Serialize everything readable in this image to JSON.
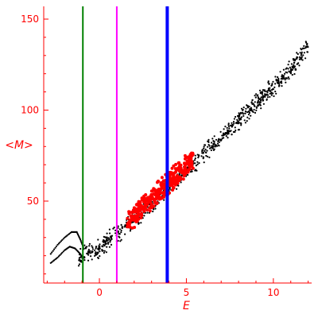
{
  "chart_data": {
    "type": "scatter",
    "title": "",
    "xlabel": "E",
    "ylabel": "<M>",
    "xlim": [
      -3.2,
      12.2
    ],
    "ylim": [
      5,
      157
    ],
    "x_ticks": [
      0,
      5,
      10
    ],
    "y_ticks": [
      50,
      100,
      150
    ],
    "x_tick_labels": [
      "0",
      "5",
      "10"
    ],
    "y_tick_labels": [
      "50",
      "100",
      "150"
    ],
    "axis_color": "#ff0000",
    "grid": false,
    "legend": "none",
    "series": [
      {
        "kind": "scatter",
        "color": "#000000",
        "marker_size": 1.1,
        "band_center": [
          [
            -1.2,
            20
          ],
          [
            0,
            24
          ],
          [
            1,
            32
          ],
          [
            2,
            40
          ],
          [
            3,
            49
          ],
          [
            4,
            58
          ],
          [
            5,
            67
          ],
          [
            6,
            76
          ],
          [
            7,
            85
          ],
          [
            8,
            94
          ],
          [
            9,
            104
          ],
          [
            10,
            113
          ],
          [
            11,
            122
          ],
          [
            12,
            135
          ]
        ],
        "band_halfwidth": 6,
        "x_range": [
          -1.2,
          12
        ],
        "approx_points": 850
      },
      {
        "kind": "curve",
        "color": "#000000",
        "marker_size": 1.1,
        "curves": [
          [
            [
              -2.8,
              21
            ],
            [
              -2.4,
              26
            ],
            [
              -2.0,
              30
            ],
            [
              -1.6,
              33
            ],
            [
              -1.3,
              33
            ],
            [
              -1.1,
              29
            ],
            [
              -0.9,
              24
            ]
          ],
          [
            [
              -2.8,
              16
            ],
            [
              -2.4,
              19
            ],
            [
              -2.0,
              23
            ],
            [
              -1.7,
              25
            ],
            [
              -1.4,
              24
            ],
            [
              -1.1,
              21
            ],
            [
              -0.9,
              18
            ]
          ]
        ]
      },
      {
        "kind": "scatter",
        "color": "#ff0000",
        "marker_size": 2.0,
        "band_center": [
          [
            1.6,
            38
          ],
          [
            2.5,
            46
          ],
          [
            3.5,
            56
          ],
          [
            4.5,
            65
          ],
          [
            5.3,
            72
          ]
        ],
        "band_halfwidth": 7,
        "x_range": [
          1.6,
          5.4
        ],
        "approx_points": 360
      }
    ],
    "vertical_lines": [
      {
        "x": -0.95,
        "color": "#008000",
        "width": 2
      },
      {
        "x": 1.0,
        "color": "#ff00ff",
        "width": 2
      },
      {
        "x": 3.9,
        "color": "#0000ff",
        "width": 4
      }
    ]
  }
}
